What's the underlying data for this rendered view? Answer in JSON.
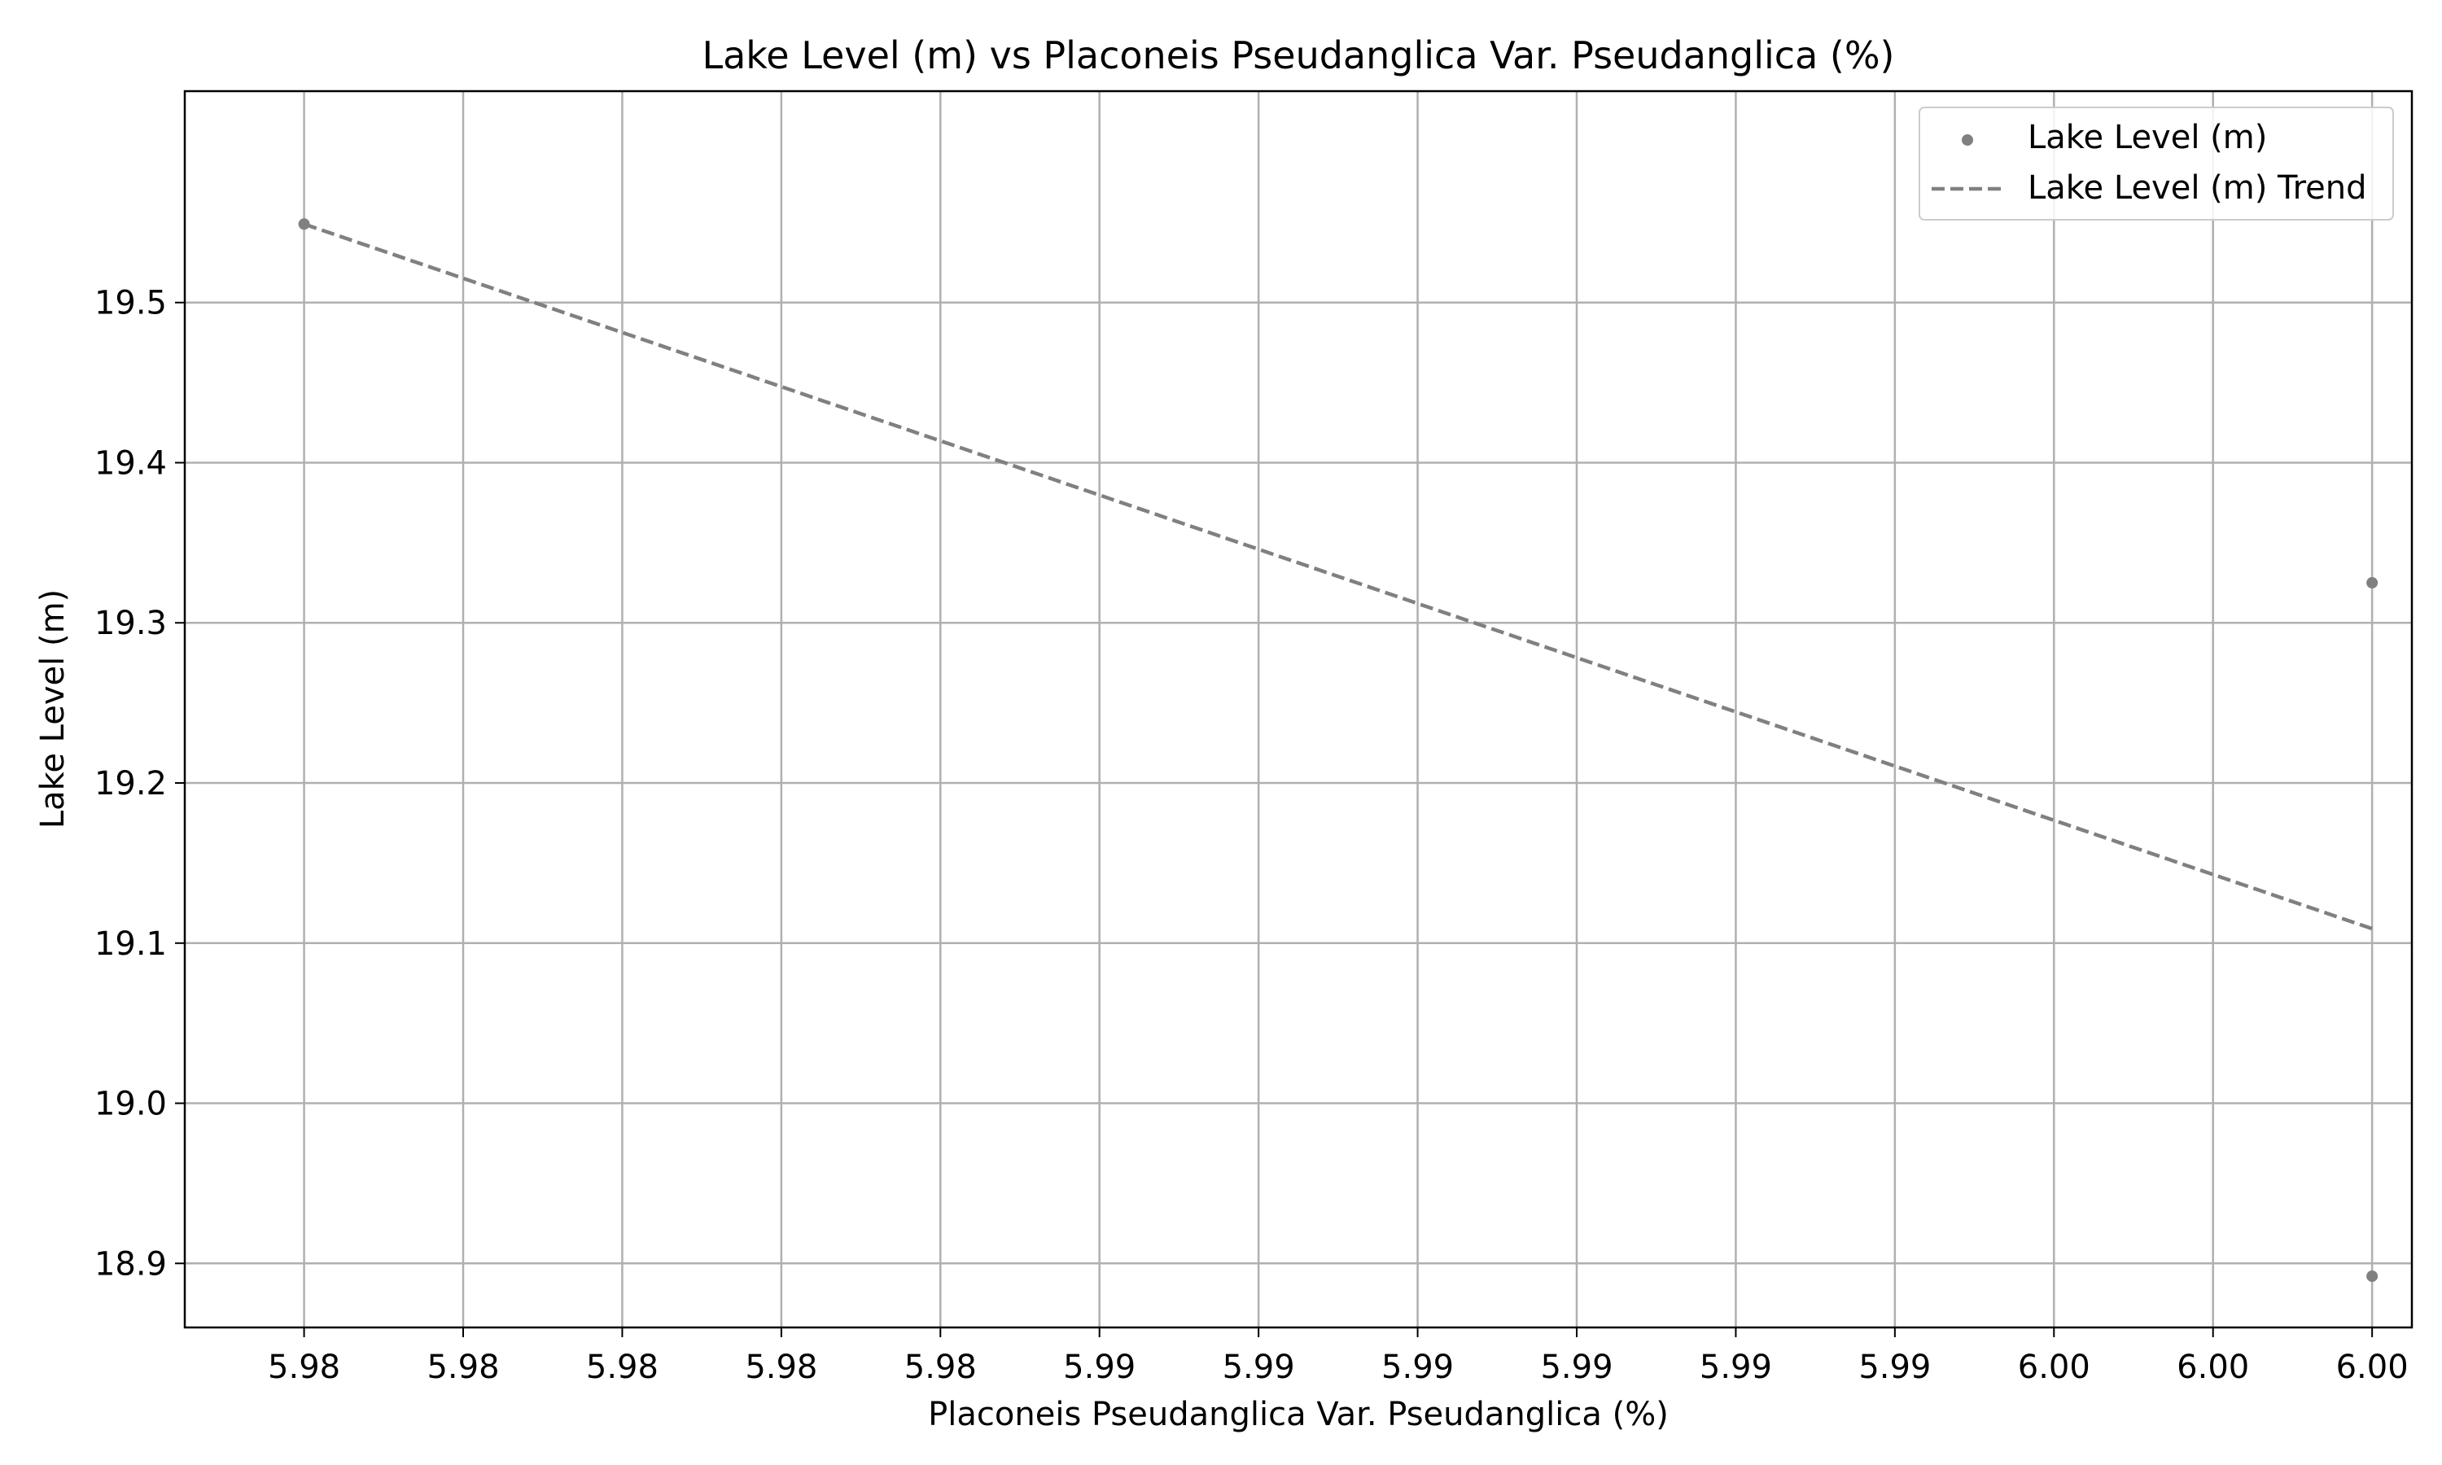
{
  "chart_data": {
    "type": "scatter",
    "title": "Lake Level (m) vs Placoneis Pseudanglica Var. Pseudanglica (%)",
    "xlabel": "Placoneis Pseudanglica Var. Pseudanglica (%)",
    "ylabel": "Lake Level (m)",
    "xlim": [
      5.9775,
      6.0055
    ],
    "ylim": [
      18.86,
      19.632
    ],
    "x_ticks": [
      5.979,
      5.981,
      5.983,
      5.985,
      5.987,
      5.989,
      5.991,
      5.993,
      5.995,
      5.997,
      5.999,
      6.001,
      6.003,
      6.005
    ],
    "x_tick_labels": [
      "5.98",
      "5.98",
      "5.98",
      "5.98",
      "5.98",
      "5.99",
      "5.99",
      "5.99",
      "5.99",
      "5.99",
      "5.99",
      "6.00",
      "6.00",
      "6.00"
    ],
    "y_ticks": [
      18.9,
      19.0,
      19.1,
      19.2,
      19.3,
      19.4,
      19.5
    ],
    "y_tick_labels": [
      "18.9",
      "19.0",
      "19.1",
      "19.2",
      "19.3",
      "19.4",
      "19.5"
    ],
    "grid": true,
    "legend_position": "top-right",
    "series": [
      {
        "name": "Lake Level (m)",
        "kind": "scatter",
        "color": "#808080",
        "points": [
          [
            5.979,
            19.549
          ],
          [
            6.005,
            19.325
          ],
          [
            6.005,
            18.892
          ]
        ]
      },
      {
        "name": "Lake Level (m) Trend",
        "kind": "line",
        "style": "dashed",
        "color": "#808080",
        "points": [
          [
            5.979,
            19.549
          ],
          [
            6.005,
            19.109
          ]
        ]
      }
    ]
  }
}
